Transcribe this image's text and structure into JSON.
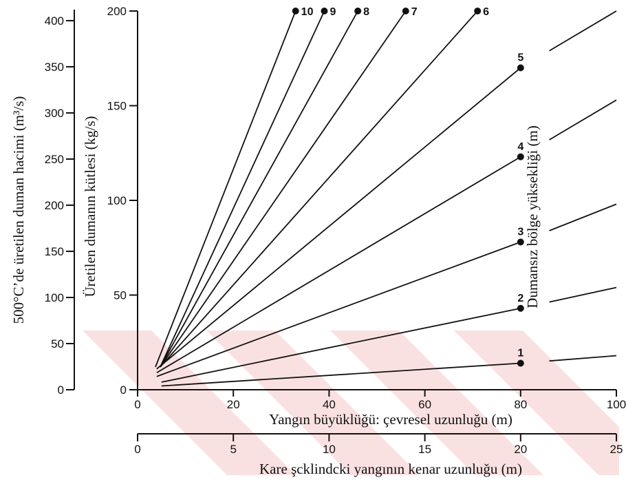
{
  "chart_data": {
    "type": "line",
    "title": "",
    "xlabel": "Yangın büyüklüğü: çevresel uzunluğu (m)",
    "ylabel": "Üretilen dumanın kütlesi (kg/s)",
    "xlim": [
      0,
      100
    ],
    "ylim": [
      0,
      200
    ],
    "xticks": [
      "0",
      "20",
      "40",
      "60",
      "80",
      "100"
    ],
    "yticks": [
      "0",
      "50",
      "100",
      "150",
      "200"
    ],
    "secondary_x_axis": {
      "label": "Kare şcklindcki yangının kenar uzunluğu (m)",
      "xlim": [
        0,
        25
      ],
      "ticks": [
        "0",
        "5",
        "10",
        "15",
        "20",
        "25"
      ]
    },
    "secondary_y_axis": {
      "label": "500°C’de üretilen duman hacimi (m³/s)",
      "ylim": [
        0,
        400
      ],
      "ticks": [
        "0",
        "50",
        "100",
        "150",
        "200",
        "250",
        "300",
        "350",
        "400"
      ]
    },
    "curve_axis_label": "Dumansız bölge yüksekliği (m)",
    "grid": false,
    "series": [
      {
        "name": "1",
        "x": [
          5,
          80,
          100
        ],
        "y": [
          2,
          14,
          18
        ]
      },
      {
        "name": "2",
        "x": [
          5,
          80,
          100
        ],
        "y": [
          4,
          43,
          54
        ]
      },
      {
        "name": "3",
        "x": [
          4,
          80,
          100
        ],
        "y": [
          7,
          78,
          98
        ]
      },
      {
        "name": "4",
        "x": [
          4,
          80,
          100
        ],
        "y": [
          9,
          123,
          153
        ]
      },
      {
        "name": "5",
        "x": [
          4,
          80,
          100
        ],
        "y": [
          11,
          170,
          200
        ]
      },
      {
        "name": "6",
        "x": [
          3,
          71
        ]
      },
      {
        "name": "7",
        "x": [
          3,
          56
        ]
      },
      {
        "name": "8",
        "x": [
          3,
          46
        ]
      },
      {
        "name": "9",
        "x": [
          3,
          39
        ]
      },
      {
        "name": "10",
        "x": [
          2,
          33
        ]
      }
    ]
  }
}
